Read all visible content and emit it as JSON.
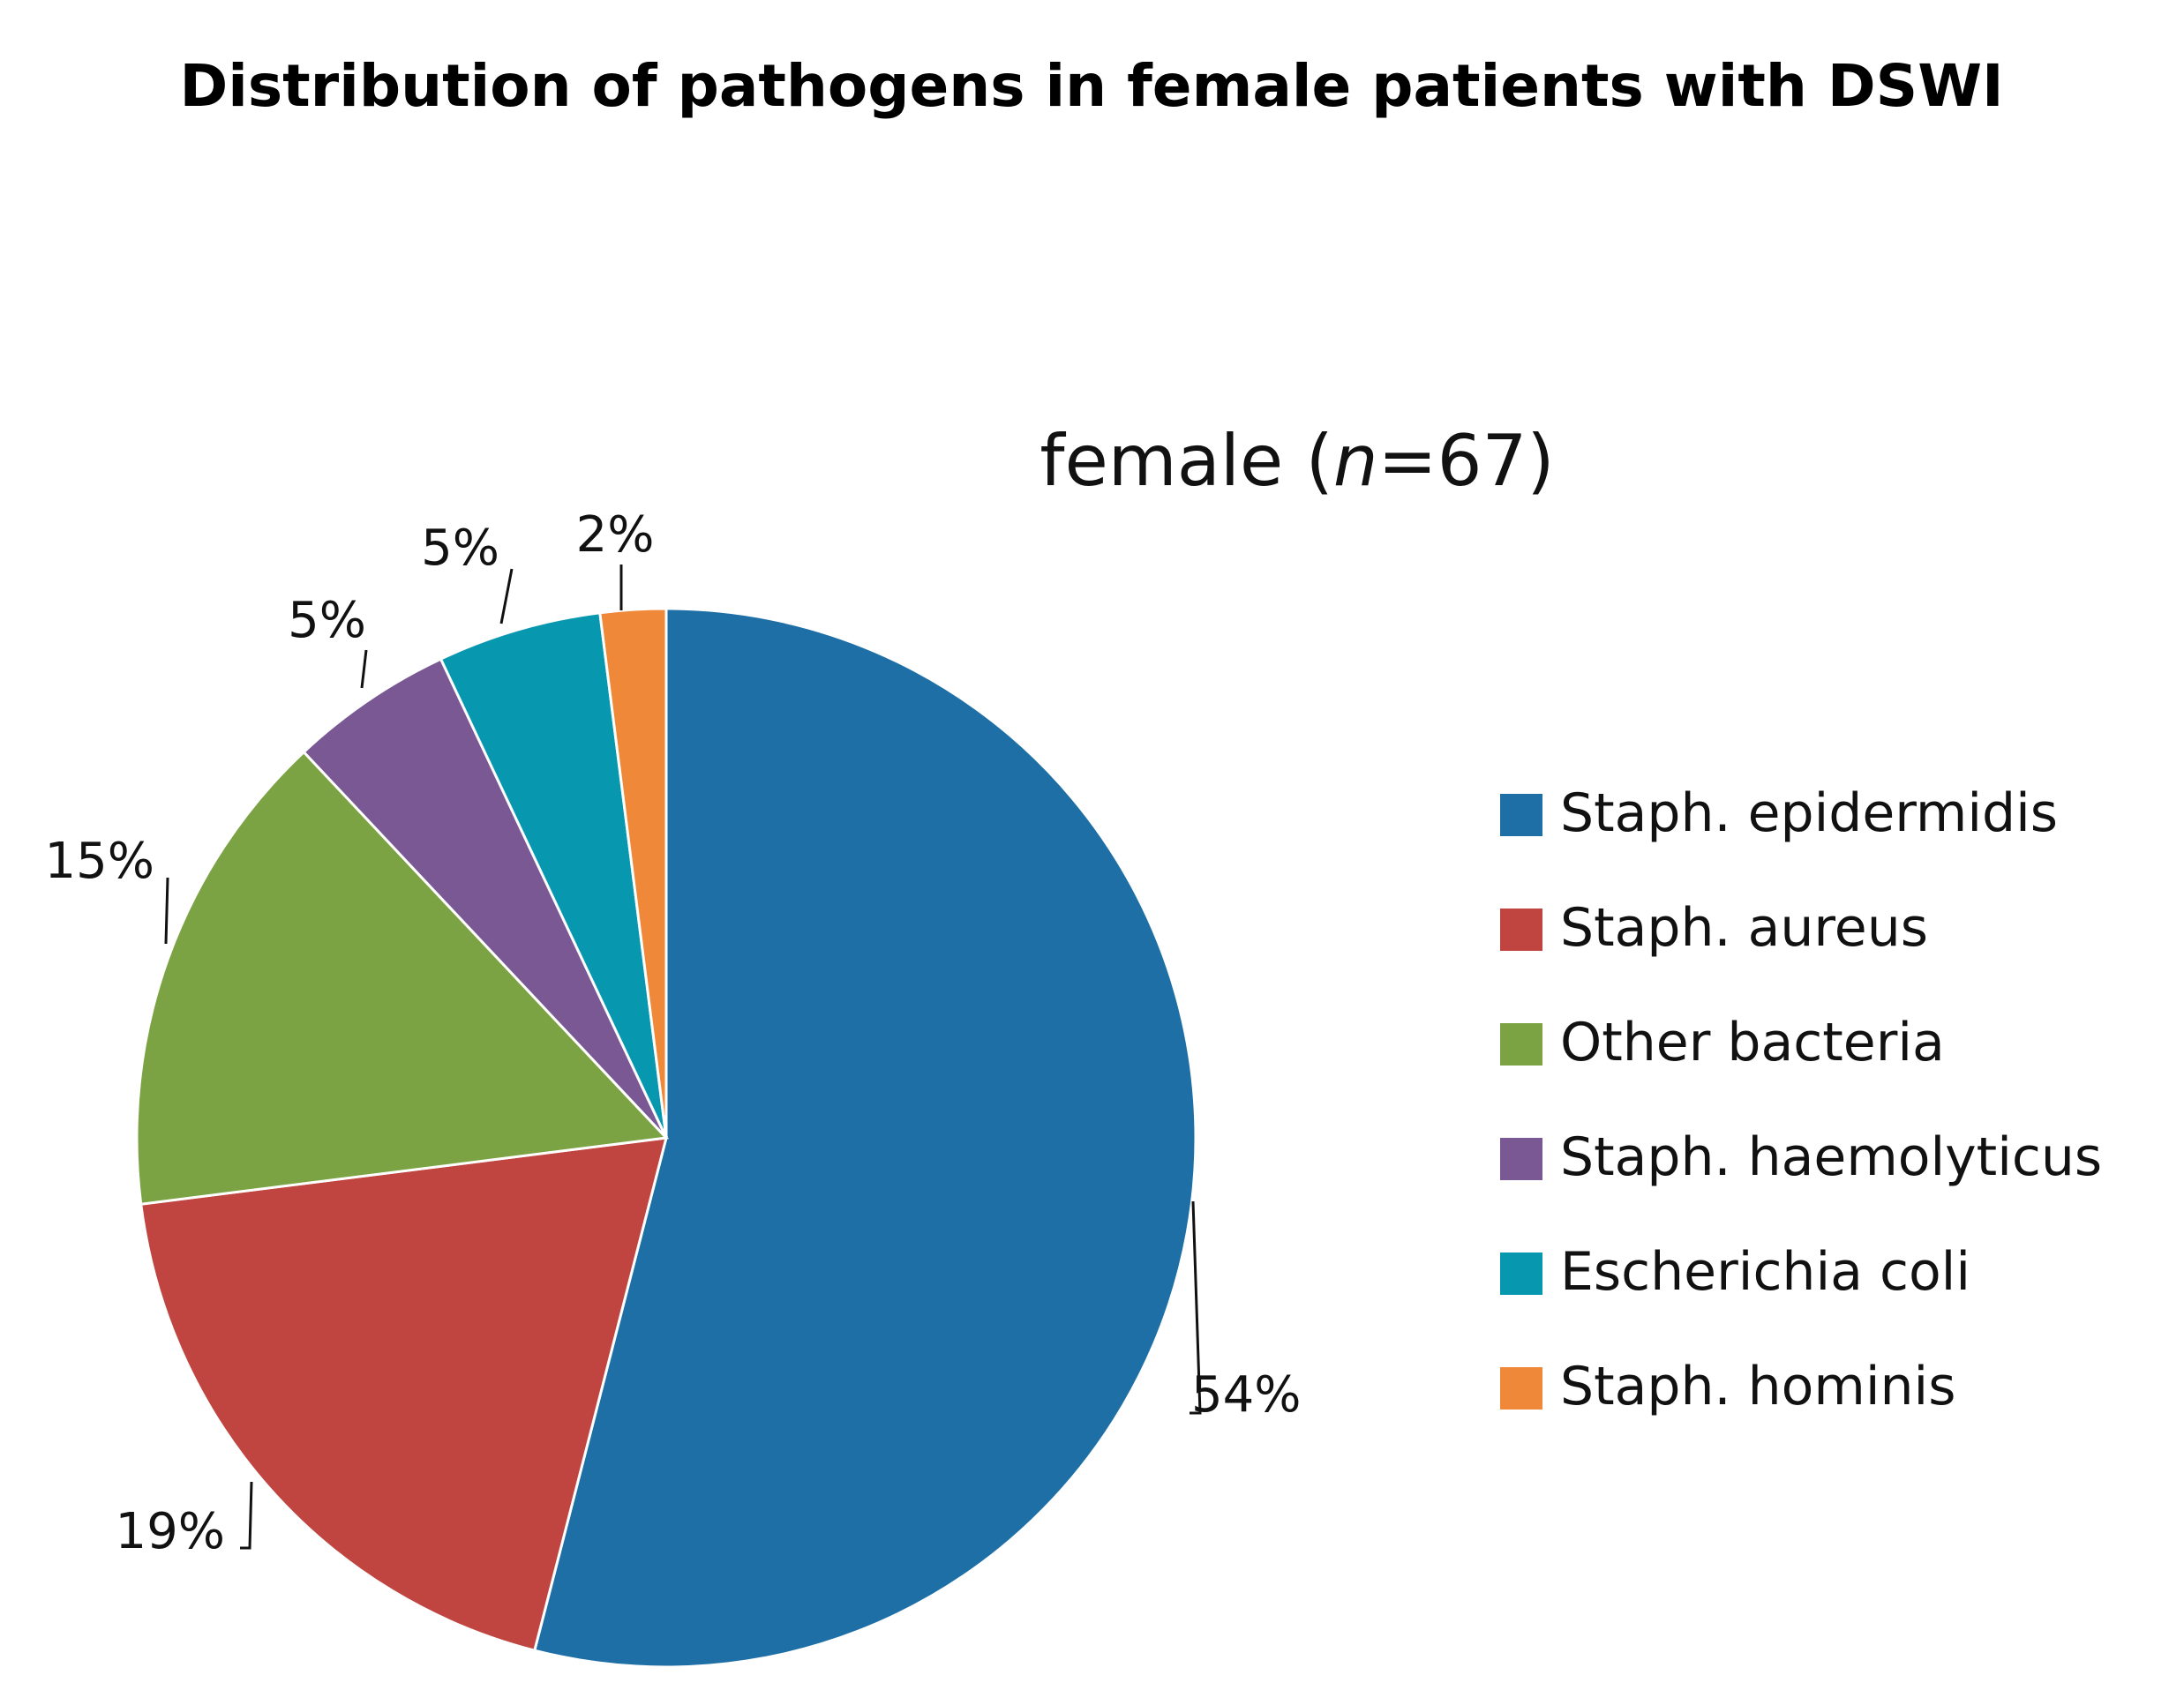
{
  "chart_data": {
    "type": "pie",
    "title": "Distribution of pathogens in female patients with DSWI",
    "subtitle": {
      "prefix": "female (",
      "italic": "n",
      "suffix": "=67)"
    },
    "categories": [
      "Staph. epidermidis",
      "Staph. aureus",
      "Other bacteria",
      "Staph. haemolyticus",
      "Escherichia coli",
      "Staph. hominis"
    ],
    "values": [
      54,
      19,
      15,
      5,
      5,
      2
    ],
    "data_labels": [
      "54%",
      "19%",
      "15%",
      "5%",
      "5%",
      "2%"
    ],
    "colors": [
      "#1F6FA7",
      "#C0443F",
      "#7BA343",
      "#7A5894",
      "#0798B0",
      "#F0883A"
    ],
    "start": "12 o'clock",
    "direction": "clockwise",
    "legend": "right"
  }
}
